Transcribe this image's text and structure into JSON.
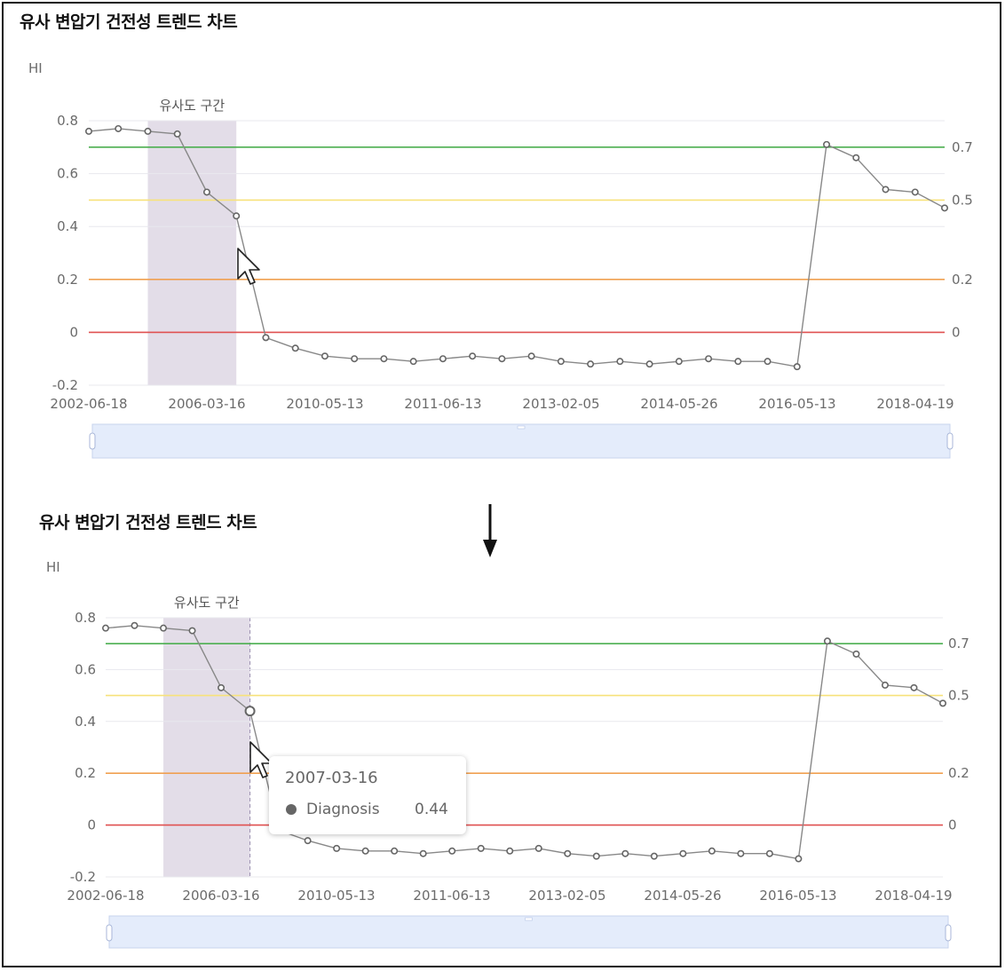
{
  "chart_data": [
    {
      "type": "line",
      "title": "유사 변압기 건전성 트렌드 차트",
      "ylabel": "HI",
      "ylim": [
        -0.2,
        0.8
      ],
      "yticks": [
        "0.8",
        "0.6",
        "0.4",
        "0.2",
        "0",
        "-0.2"
      ],
      "xticks": [
        "2002-06-18",
        "2006-03-16",
        "2010-05-13",
        "2011-06-13",
        "2013-02-05",
        "2014-05-26",
        "2016-05-13",
        "2018-04-19"
      ],
      "series": [
        {
          "values": [
            0.76,
            0.77,
            0.76,
            0.75,
            0.53,
            0.44,
            -0.02,
            -0.06,
            -0.09,
            -0.1,
            -0.1,
            -0.11,
            -0.1,
            -0.09,
            -0.1,
            -0.09,
            -0.11,
            -0.12,
            -0.11,
            -0.12,
            -0.11,
            -0.1,
            -0.11,
            -0.11,
            -0.13,
            0.71,
            0.66,
            0.54,
            0.53,
            0.47
          ]
        }
      ],
      "thresholds": [
        {
          "value": 0.7,
          "label": "0.7",
          "color": "#4caf50"
        },
        {
          "value": 0.5,
          "label": "0.5",
          "color": "#f7e27a"
        },
        {
          "value": 0.2,
          "label": "0.2",
          "color": "#f0a050"
        },
        {
          "value": 0.0,
          "label": "0",
          "color": "#e05050"
        }
      ],
      "highlight_band": {
        "label": "유사도 구간",
        "from_index": 2,
        "to_index": 5,
        "color": "#e3dde8"
      },
      "line_color": "#888888",
      "grid": true
    },
    {
      "type": "line",
      "title": "유사 변압기 건전성 트렌드 차트",
      "ylabel": "HI",
      "ylim": [
        -0.2,
        0.8
      ],
      "yticks": [
        "0.8",
        "0.6",
        "0.4",
        "0.2",
        "0",
        "-0.2"
      ],
      "xticks": [
        "2002-06-18",
        "2006-03-16",
        "2010-05-13",
        "2011-06-13",
        "2013-02-05",
        "2014-05-26",
        "2016-05-13",
        "2018-04-19"
      ],
      "series": [
        {
          "name": "Diagnosis",
          "values": [
            0.76,
            0.77,
            0.76,
            0.75,
            0.53,
            0.44,
            -0.02,
            -0.06,
            -0.09,
            -0.1,
            -0.1,
            -0.11,
            -0.1,
            -0.09,
            -0.1,
            -0.09,
            -0.11,
            -0.12,
            -0.11,
            -0.12,
            -0.11,
            -0.1,
            -0.11,
            -0.11,
            -0.13,
            0.71,
            0.66,
            0.54,
            0.53,
            0.47
          ]
        }
      ],
      "thresholds": [
        {
          "value": 0.7,
          "label": "0.7",
          "color": "#4caf50"
        },
        {
          "value": 0.5,
          "label": "0.5",
          "color": "#f7e27a"
        },
        {
          "value": 0.2,
          "label": "0.2",
          "color": "#f0a050"
        },
        {
          "value": 0.0,
          "label": "0",
          "color": "#e05050"
        }
      ],
      "highlight_band": {
        "label": "유사도 구간",
        "from_index": 2,
        "to_index": 5,
        "color": "#e3dde8"
      },
      "line_color": "#888888",
      "grid": true,
      "tooltip": {
        "date": "2007-03-16",
        "series": "Diagnosis",
        "value": "0.44",
        "index": 5
      }
    }
  ],
  "arrow_icon": "down-arrow-icon"
}
